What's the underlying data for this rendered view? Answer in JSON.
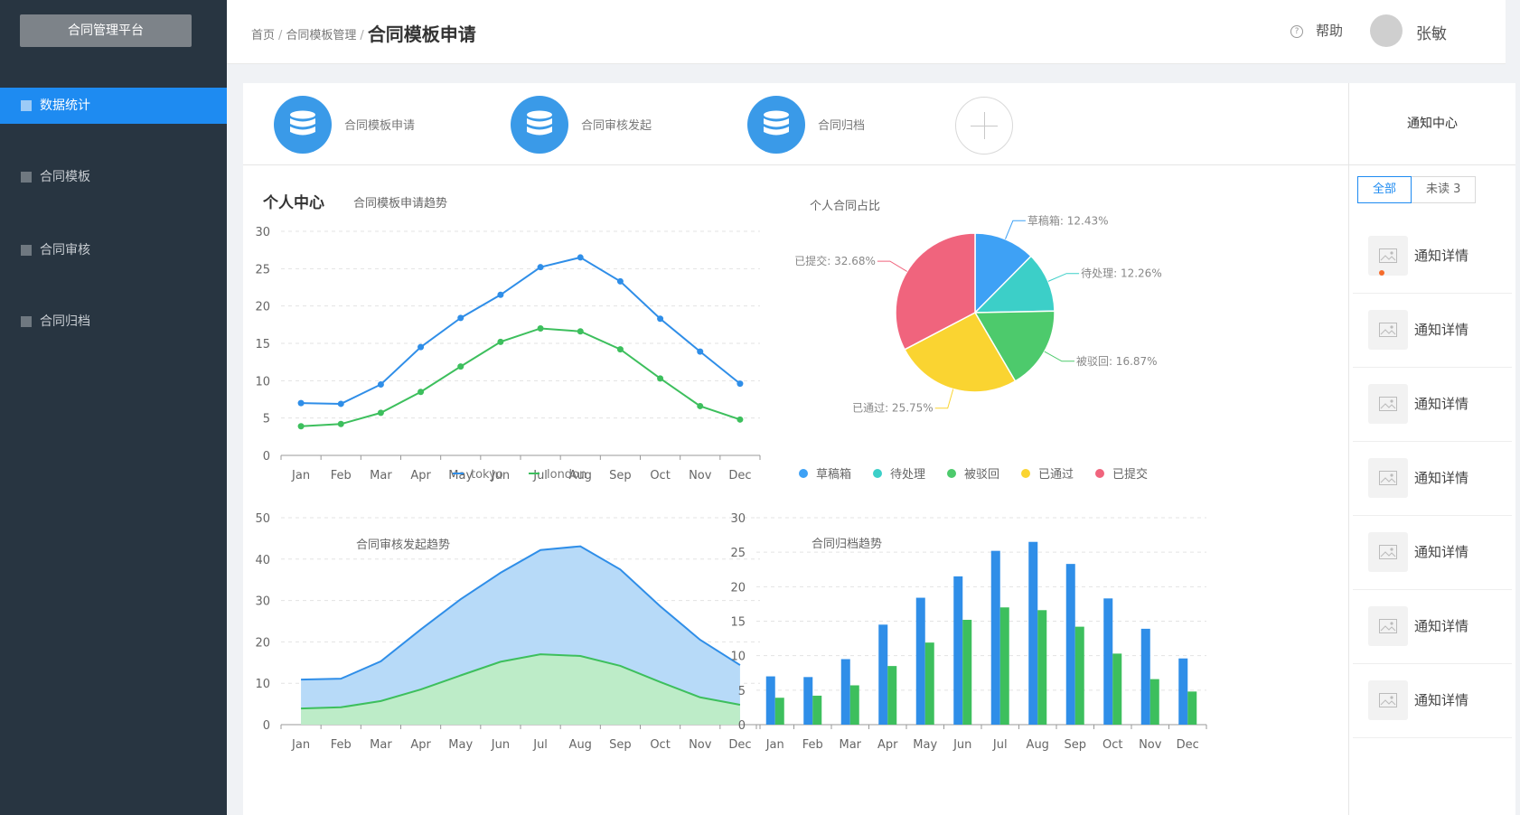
{
  "sidebar": {
    "brand": "合同管理平台",
    "items": [
      {
        "label": "数据统计",
        "active": true
      },
      {
        "label": "合同模板",
        "active": false
      },
      {
        "label": "合同审核",
        "active": false
      },
      {
        "label": "合同归档",
        "active": false
      }
    ]
  },
  "header": {
    "breadcrumb": [
      "首页",
      "合同模板管理"
    ],
    "current": "合同模板申请",
    "help": "帮助",
    "user": "张敏"
  },
  "quick_actions": [
    {
      "label": "合同模板申请",
      "icon": "database-icon"
    },
    {
      "label": "合同审核发起",
      "icon": "database-icon"
    },
    {
      "label": "合同归档",
      "icon": "database-icon"
    }
  ],
  "section_title": "个人中心",
  "colors": {
    "blue": "#2f8ee8",
    "green": "#3dbf5d",
    "sidebar": "#283541",
    "accent": "#1e8bf1",
    "pie": [
      "#3ea1f5",
      "#3ccfc8",
      "#4dca6c",
      "#fad431",
      "#f0647d"
    ]
  },
  "chart_data": [
    {
      "type": "line",
      "title": "合同模板申请趋势",
      "categories": [
        "Jan",
        "Feb",
        "Mar",
        "Apr",
        "May",
        "Jun",
        "Jul",
        "Aug",
        "Sep",
        "Oct",
        "Nov",
        "Dec"
      ],
      "series": [
        {
          "name": "tokyo",
          "values": [
            7.0,
            6.9,
            9.5,
            14.5,
            18.4,
            21.5,
            25.2,
            26.5,
            23.3,
            18.3,
            13.9,
            9.6
          ]
        },
        {
          "name": "london",
          "values": [
            3.9,
            4.2,
            5.7,
            8.5,
            11.9,
            15.2,
            17.0,
            16.6,
            14.2,
            10.3,
            6.6,
            4.8
          ]
        }
      ],
      "ylim": [
        0,
        30
      ],
      "yticks": [
        0,
        5,
        10,
        15,
        20,
        25,
        30
      ],
      "legend": "bottom"
    },
    {
      "type": "pie",
      "title": "个人合同占比",
      "slices": [
        {
          "name": "草稿箱",
          "value": 12.43,
          "label": "草稿箱: 12.43%"
        },
        {
          "name": "待处理",
          "value": 12.26,
          "label": "待处理: 12.26%"
        },
        {
          "name": "被驳回",
          "value": 16.87,
          "label": "被驳回: 16.87%"
        },
        {
          "name": "已通过",
          "value": 25.75,
          "label": "已通过: 25.75%"
        },
        {
          "name": "已提交",
          "value": 32.68,
          "label": "已提交: 32.68%"
        }
      ],
      "legend": "bottom"
    },
    {
      "type": "area",
      "title": "合同审核发起趋势",
      "categories": [
        "Jan",
        "Feb",
        "Mar",
        "Apr",
        "May",
        "Jun",
        "Jul",
        "Aug",
        "Sep",
        "Oct",
        "Nov",
        "Dec"
      ],
      "series": [
        {
          "values": [
            10.9,
            11.1,
            15.3,
            23.0,
            30.3,
            36.7,
            42.2,
            43.1,
            37.5,
            28.6,
            20.5,
            14.4
          ]
        },
        {
          "values": [
            3.9,
            4.2,
            5.7,
            8.5,
            11.9,
            15.2,
            17.0,
            16.6,
            14.2,
            10.3,
            6.6,
            4.8
          ]
        }
      ],
      "ylim": [
        0,
        50
      ],
      "yticks": [
        0,
        10,
        20,
        30,
        40,
        50
      ]
    },
    {
      "type": "bar",
      "title": "合同归档趋势",
      "categories": [
        "Jan",
        "Feb",
        "Mar",
        "Apr",
        "May",
        "Jun",
        "Jul",
        "Aug",
        "Sep",
        "Oct",
        "Nov",
        "Dec"
      ],
      "series": [
        {
          "values": [
            7.0,
            6.9,
            9.5,
            14.5,
            18.4,
            21.5,
            25.2,
            26.5,
            23.3,
            18.3,
            13.9,
            9.6
          ]
        },
        {
          "values": [
            3.9,
            4.2,
            5.7,
            8.5,
            11.9,
            15.2,
            17.0,
            16.6,
            14.2,
            10.3,
            6.6,
            4.8
          ]
        }
      ],
      "ylim": [
        0,
        30
      ],
      "yticks": [
        0,
        5,
        10,
        15,
        20,
        25,
        30
      ]
    }
  ],
  "notice": {
    "title": "通知中心",
    "tabs": [
      "全部",
      "未读 3"
    ],
    "items": [
      {
        "text": "通知详情",
        "unread": true
      },
      {
        "text": "通知详情",
        "unread": false
      },
      {
        "text": "通知详情",
        "unread": false
      },
      {
        "text": "通知详情",
        "unread": false
      },
      {
        "text": "通知详情",
        "unread": false
      },
      {
        "text": "通知详情",
        "unread": false
      },
      {
        "text": "通知详情",
        "unread": false
      }
    ]
  }
}
